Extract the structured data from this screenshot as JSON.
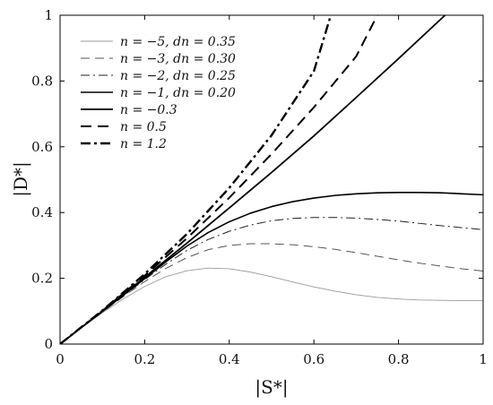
{
  "chart_data": {
    "type": "line",
    "xlabel": "|S*|",
    "ylabel": "|D*|",
    "xlim": [
      0,
      1
    ],
    "ylim": [
      0,
      1
    ],
    "x_ticks": [
      "0",
      "0.2",
      "0.4",
      "0.6",
      "0.8",
      "1"
    ],
    "y_ticks": [
      "0",
      "0.2",
      "0.4",
      "0.6",
      "0.8",
      "1"
    ],
    "grid": false,
    "legend_position": "top-left",
    "series": [
      {
        "name": "n = −5,  dn = 0.35",
        "style": "thin",
        "color": "#9a9a9a",
        "x": [
          0,
          0.05,
          0.1,
          0.15,
          0.2,
          0.25,
          0.3,
          0.35,
          0.4,
          0.45,
          0.5,
          0.55,
          0.6,
          0.65,
          0.7,
          0.75,
          0.8,
          0.85,
          0.9,
          0.95,
          1.0
        ],
        "y": [
          0,
          0.049,
          0.095,
          0.138,
          0.175,
          0.205,
          0.223,
          0.231,
          0.229,
          0.219,
          0.205,
          0.189,
          0.174,
          0.161,
          0.15,
          0.142,
          0.137,
          0.134,
          0.133,
          0.132,
          0.132
        ]
      },
      {
        "name": "n = −3,  dn = 0.30",
        "style": "dashed-thin",
        "color": "#555555",
        "x": [
          0,
          0.05,
          0.1,
          0.15,
          0.2,
          0.25,
          0.3,
          0.35,
          0.4,
          0.45,
          0.5,
          0.55,
          0.6,
          0.65,
          0.7,
          0.75,
          0.8,
          0.85,
          0.9,
          0.95,
          1.0
        ],
        "y": [
          0,
          0.049,
          0.097,
          0.145,
          0.19,
          0.23,
          0.263,
          0.287,
          0.3,
          0.305,
          0.305,
          0.302,
          0.296,
          0.288,
          0.278,
          0.267,
          0.256,
          0.246,
          0.237,
          0.229,
          0.222
        ]
      },
      {
        "name": "n = −2,  dn = 0.25",
        "style": "dashdot-thin",
        "color": "#222222",
        "x": [
          0,
          0.05,
          0.1,
          0.15,
          0.2,
          0.25,
          0.3,
          0.35,
          0.4,
          0.45,
          0.5,
          0.55,
          0.6,
          0.65,
          0.7,
          0.75,
          0.8,
          0.85,
          0.9,
          0.95,
          1.0
        ],
        "y": [
          0,
          0.049,
          0.098,
          0.147,
          0.196,
          0.243,
          0.285,
          0.318,
          0.343,
          0.362,
          0.375,
          0.382,
          0.385,
          0.385,
          0.383,
          0.379,
          0.374,
          0.367,
          0.36,
          0.354,
          0.348
        ]
      },
      {
        "name": "n = −1,  dn = 0.20",
        "style": "solid",
        "color": "#000000",
        "x": [
          0,
          0.05,
          0.1,
          0.15,
          0.2,
          0.25,
          0.3,
          0.35,
          0.4,
          0.45,
          0.5,
          0.55,
          0.6,
          0.65,
          0.7,
          0.75,
          0.8,
          0.85,
          0.9,
          0.95,
          1.0
        ],
        "y": [
          0,
          0.05,
          0.099,
          0.149,
          0.199,
          0.25,
          0.298,
          0.339,
          0.372,
          0.398,
          0.418,
          0.433,
          0.444,
          0.452,
          0.457,
          0.46,
          0.461,
          0.461,
          0.46,
          0.457,
          0.454
        ]
      },
      {
        "name": "n = −0.3",
        "style": "solid-thick",
        "color": "#000000",
        "x": [
          0,
          0.1,
          0.2,
          0.3,
          0.4,
          0.5,
          0.6,
          0.7,
          0.8,
          0.9,
          0.91
        ],
        "y": [
          0,
          0.1,
          0.203,
          0.307,
          0.414,
          0.522,
          0.633,
          0.75,
          0.868,
          0.988,
          1.0
        ]
      },
      {
        "name": "n = 0.5",
        "style": "dashed-thick",
        "color": "#000000",
        "x": [
          0,
          0.1,
          0.2,
          0.3,
          0.4,
          0.5,
          0.6,
          0.7,
          0.75
        ],
        "y": [
          0,
          0.101,
          0.208,
          0.322,
          0.445,
          0.578,
          0.72,
          0.875,
          1.0
        ]
      },
      {
        "name": "n = 1.2",
        "style": "dashdot-thick",
        "color": "#000000",
        "x": [
          0,
          0.1,
          0.2,
          0.3,
          0.4,
          0.5,
          0.6,
          0.64
        ],
        "y": [
          0,
          0.102,
          0.213,
          0.335,
          0.475,
          0.635,
          0.83,
          1.0
        ]
      }
    ]
  }
}
